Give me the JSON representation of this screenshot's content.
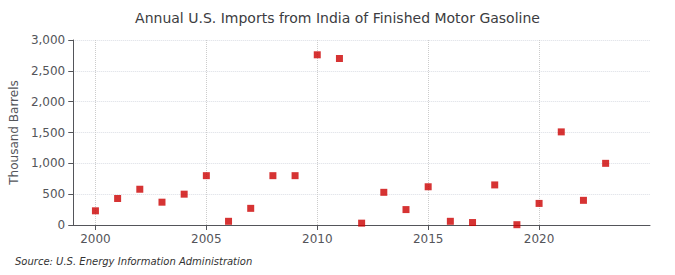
{
  "chart_data": {
    "type": "scatter",
    "title": "Annual U.S. Imports from India of Finished Motor Gasoline",
    "ylabel": "Thousand Barrels",
    "annotation": "Source: U.S. Energy Information Administration",
    "x": [
      2000,
      2001,
      2002,
      2003,
      2004,
      2005,
      2006,
      2007,
      2008,
      2009,
      2010,
      2011,
      2012,
      2013,
      2014,
      2015,
      2016,
      2017,
      2018,
      2019,
      2020,
      2021,
      2022,
      2023
    ],
    "values": [
      230,
      430,
      580,
      370,
      500,
      800,
      60,
      270,
      800,
      800,
      2760,
      2700,
      30,
      530,
      250,
      620,
      60,
      40,
      650,
      5,
      350,
      1510,
      400,
      1000
    ],
    "color": "#cc0000",
    "marker": "square",
    "xlim": [
      1999,
      2025
    ],
    "xticks": [
      2000,
      2005,
      2010,
      2015,
      2020
    ],
    "ylim": [
      0,
      3000
    ],
    "yticks": [
      0,
      500,
      {
        "value": 1000,
        "label": "1,000"
      },
      {
        "value": 1500,
        "label": "1,500"
      },
      {
        "value": 2000,
        "label": "2,000"
      },
      {
        "value": 2500,
        "label": "2,500"
      },
      {
        "value": 3000,
        "label": "3,000"
      }
    ],
    "grid": true
  }
}
